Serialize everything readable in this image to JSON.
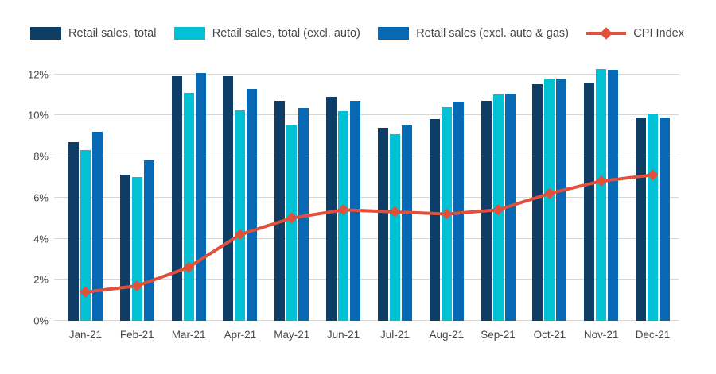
{
  "chart_data": {
    "type": "bar",
    "title": "",
    "categories": [
      "Jan-21",
      "Feb-21",
      "Mar-21",
      "Apr-21",
      "May-21",
      "Jun-21",
      "Jul-21",
      "Aug-21",
      "Sep-21",
      "Oct-21",
      "Nov-21",
      "Dec-21"
    ],
    "series": [
      {
        "name": "Retail sales, total",
        "type": "bar",
        "color": "#0E3D66",
        "values": [
          8.7,
          7.1,
          11.9,
          11.9,
          10.7,
          10.9,
          9.4,
          9.8,
          10.7,
          11.5,
          11.6,
          9.9
        ]
      },
      {
        "name": "Retail sales, total (excl. auto)",
        "type": "bar",
        "color": "#03C1D5",
        "values": [
          8.3,
          7.0,
          11.1,
          10.25,
          9.5,
          10.2,
          9.1,
          10.4,
          11.0,
          11.8,
          12.25,
          10.1
        ]
      },
      {
        "name": "Retail sales (excl. auto & gas)",
        "type": "bar",
        "color": "#0768B4",
        "values": [
          9.2,
          7.8,
          12.05,
          11.3,
          10.35,
          10.7,
          9.5,
          10.65,
          11.05,
          11.8,
          12.2,
          9.9
        ]
      },
      {
        "name": "CPI Index",
        "type": "line",
        "marker": "diamond",
        "color": "#E0503A",
        "values": [
          1.4,
          1.7,
          2.6,
          4.2,
          5.0,
          5.4,
          5.3,
          5.2,
          5.4,
          6.2,
          6.8,
          7.1
        ]
      }
    ],
    "xlabel": "",
    "ylabel": "",
    "y_ticks": [
      {
        "value": 0,
        "label": "0%"
      },
      {
        "value": 2,
        "label": "2%"
      },
      {
        "value": 4,
        "label": "4%"
      },
      {
        "value": 6,
        "label": "6%"
      },
      {
        "value": 8,
        "label": "8%"
      },
      {
        "value": 10,
        "label": "10%"
      },
      {
        "value": 12,
        "label": "12%"
      }
    ],
    "ylim": [
      0,
      12.6
    ],
    "grid": "horizontal",
    "gridline_color": "#d7d7d7",
    "text_color": "#45494d",
    "background_color": "#ffffff",
    "legend_position": "top"
  }
}
